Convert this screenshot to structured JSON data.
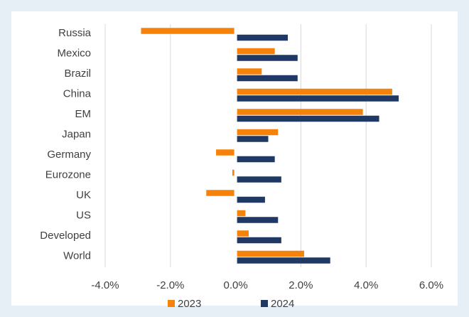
{
  "chart_data": {
    "type": "bar",
    "orientation": "horizontal",
    "categories": [
      "Russia",
      "Mexico",
      "Brazil",
      "China",
      "EM",
      "Japan",
      "Germany",
      "Eurozone",
      "UK",
      "US",
      "Developed",
      "World"
    ],
    "series": [
      {
        "name": "2023",
        "color": "#f5820a",
        "values": [
          -2.9,
          1.2,
          0.8,
          4.8,
          3.9,
          1.3,
          -0.6,
          -0.1,
          -0.9,
          0.3,
          0.4,
          2.1
        ]
      },
      {
        "name": "2024",
        "color": "#1f3864",
        "values": [
          1.6,
          1.9,
          1.9,
          5.0,
          4.4,
          1.0,
          1.2,
          1.4,
          0.9,
          1.3,
          1.4,
          2.9
        ]
      }
    ],
    "xlim": [
      -4,
      6
    ],
    "xticks": [
      {
        "value": -4,
        "label": "-4.0%"
      },
      {
        "value": -2,
        "label": "-2.0%"
      },
      {
        "value": 0,
        "label": "0.0%"
      },
      {
        "value": 2,
        "label": "2.0%"
      },
      {
        "value": 4,
        "label": "4.0%"
      },
      {
        "value": 6,
        "label": "6.0%"
      }
    ],
    "grid": true,
    "legend": "bottom"
  }
}
